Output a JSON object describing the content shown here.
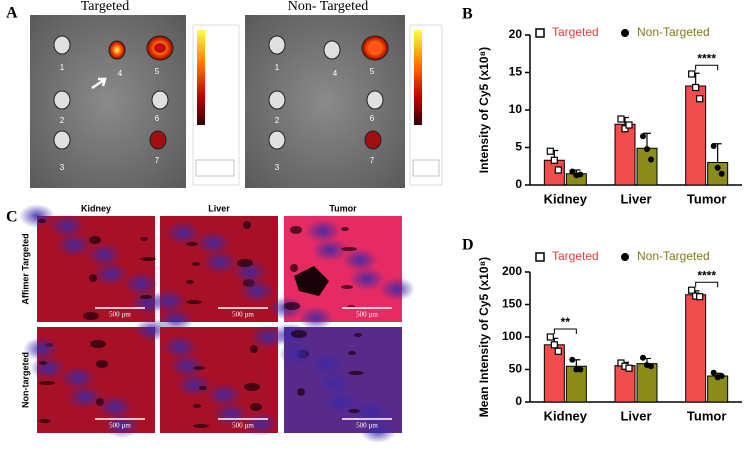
{
  "panel_a": {
    "label": "A",
    "titles": [
      "Targeted",
      "Non- Targeted"
    ],
    "organ_numbers": [
      "1",
      "2",
      "3",
      "4",
      "5",
      "6",
      "7"
    ]
  },
  "panel_c": {
    "label": "C",
    "columns": [
      "Kidney",
      "Liver",
      "Tumor"
    ],
    "rows": [
      "Affimer Targeted",
      "Non-targeted"
    ],
    "scale_bar": "500 µm"
  },
  "chart_data": [
    {
      "type": "bar",
      "panel_label": "B",
      "y_label": "Intensity of Cy5 (x10⁸)",
      "categories": [
        "Kidney",
        "Liver",
        "Tumor"
      ],
      "series": [
        {
          "name": "Targeted",
          "color": "#f24d4d",
          "text_color": "#e83b3b",
          "marker": "square",
          "values": [
            3.3,
            8.1,
            13.2
          ],
          "error": [
            1.3,
            0.9,
            1.7
          ],
          "points": [
            [
              4.5,
              3.3,
              2.0
            ],
            [
              8.8,
              7.5,
              8.0
            ],
            [
              14.8,
              13.0,
              11.5
            ]
          ]
        },
        {
          "name": "Non-Targeted",
          "color": "#8c8c1a",
          "text_color": "#7d7d12",
          "marker": "circle",
          "values": [
            1.5,
            4.9,
            3.0
          ],
          "error": [
            0.5,
            2.0,
            2.5
          ],
          "points": [
            [
              1.8,
              1.3,
              1.4
            ],
            [
              6.5,
              4.8,
              3.4
            ],
            [
              5.2,
              2.3,
              1.5
            ]
          ]
        }
      ],
      "annotations": [
        null,
        null,
        "****"
      ],
      "ylim": [
        0,
        20
      ],
      "yticks": [
        0,
        5,
        10,
        15,
        20
      ]
    },
    {
      "type": "bar",
      "panel_label": "D",
      "y_label": "Mean Intensity of Cy5 (x10⁸)",
      "categories": [
        "Kidney",
        "Liver",
        "Tumor"
      ],
      "series": [
        {
          "name": "Targeted",
          "color": "#f24d4d",
          "text_color": "#e83b3b",
          "marker": "square",
          "values": [
            88,
            56,
            165
          ],
          "error": [
            10,
            5,
            6
          ],
          "points": [
            [
              100,
              88,
              78
            ],
            [
              60,
              55,
              52
            ],
            [
              172,
              163,
              162
            ]
          ]
        },
        {
          "name": "Non-Targeted",
          "color": "#8c8c1a",
          "text_color": "#7d7d12",
          "marker": "circle",
          "values": [
            55,
            59,
            40
          ],
          "error": [
            10,
            8,
            4
          ],
          "points": [
            [
              65,
              50,
              50
            ],
            [
              68,
              57,
              55
            ],
            [
              45,
              38,
              40
            ]
          ]
        }
      ],
      "annotations": [
        "**",
        null,
        "****"
      ],
      "ylim": [
        0,
        200
      ],
      "yticks": [
        0,
        50,
        100,
        150,
        200
      ]
    }
  ]
}
